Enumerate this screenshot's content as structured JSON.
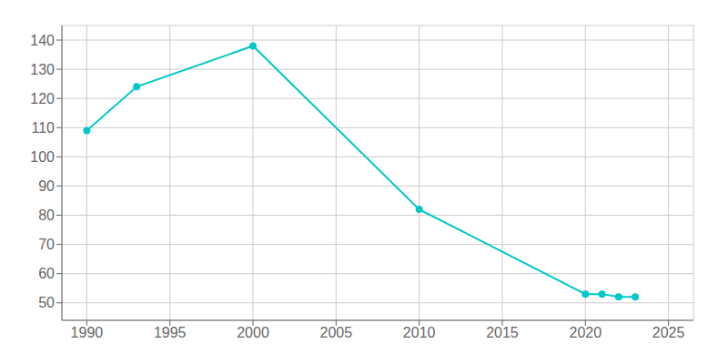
{
  "chart_data": {
    "type": "line",
    "x": [
      1990,
      1993,
      2000,
      2010,
      2020,
      2021,
      2022,
      2023
    ],
    "values": [
      109,
      124,
      138,
      82,
      53,
      53,
      52,
      52
    ],
    "color": "#00c8c8",
    "marker": "circle",
    "xlim": [
      1988.5,
      2026.5
    ],
    "ylim": [
      44,
      145
    ],
    "xticks": [
      1990,
      1995,
      2000,
      2005,
      2010,
      2015,
      2020,
      2025
    ],
    "yticks": [
      50,
      60,
      70,
      80,
      90,
      100,
      110,
      120,
      130,
      140
    ],
    "grid": true
  }
}
